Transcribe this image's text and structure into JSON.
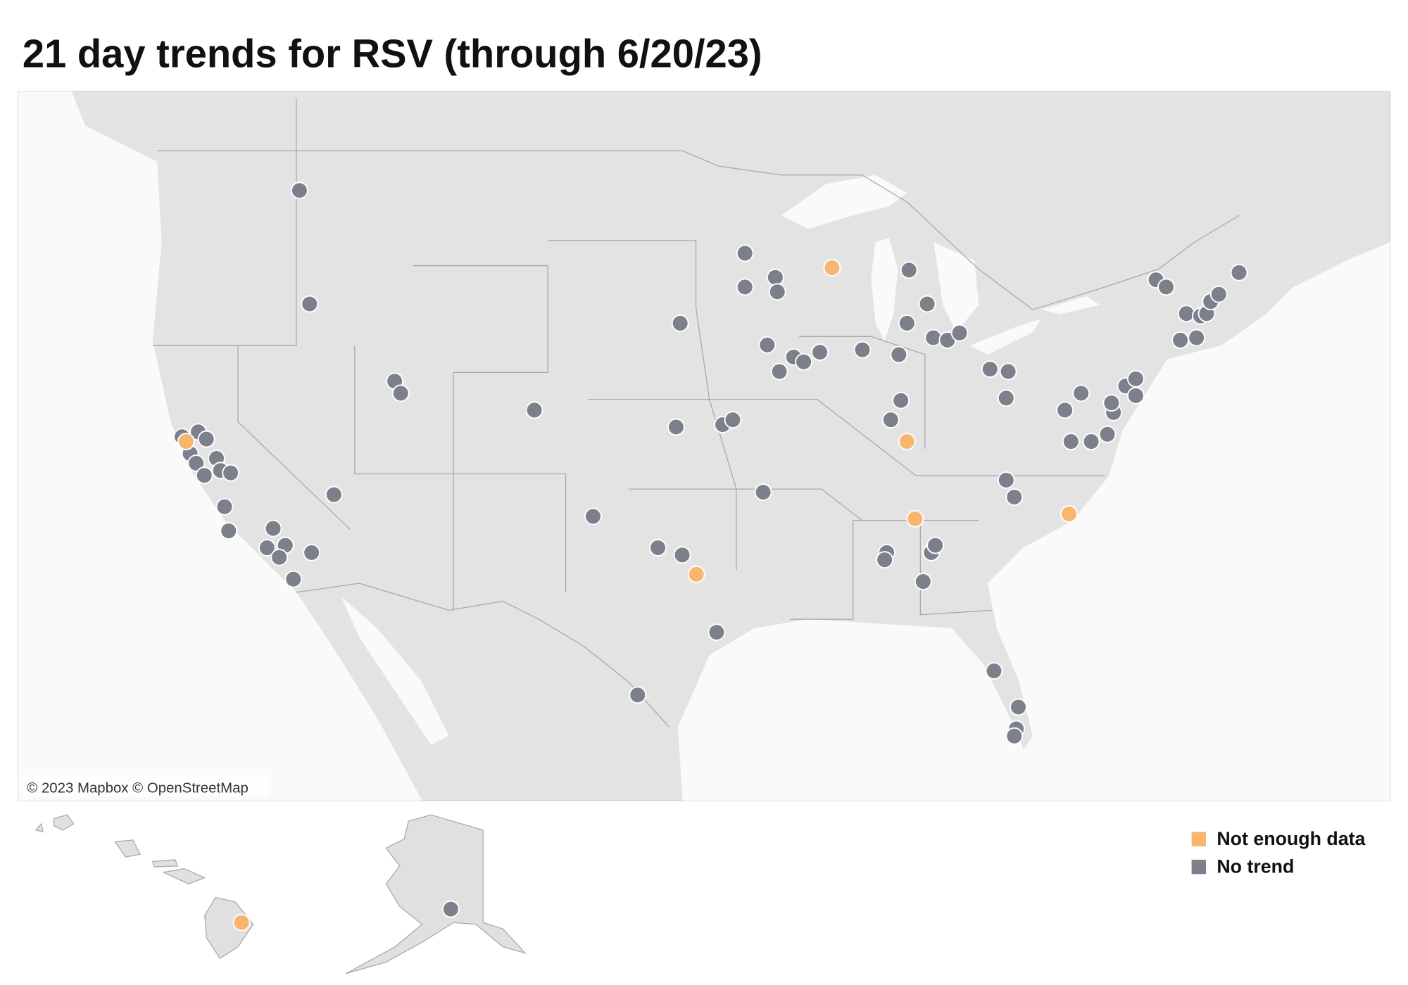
{
  "title": "21 day trends for RSV (through 6/20/23)",
  "attribution": "© 2023 Mapbox © OpenStreetMap",
  "series": [
    {
      "name": "No trend",
      "color": "#7b808b",
      "sites": [
        [
          -116.7,
          48.2
        ],
        [
          -116.2,
          43.5
        ],
        [
          -112.0,
          40.3
        ],
        [
          -111.7,
          39.8
        ],
        [
          -105.1,
          39.1
        ],
        [
          -115.0,
          35.6
        ],
        [
          -122.5,
          38.0
        ],
        [
          -121.7,
          38.2
        ],
        [
          -121.3,
          37.9
        ],
        [
          -122.1,
          37.3
        ],
        [
          -121.8,
          36.9
        ],
        [
          -120.8,
          37.1
        ],
        [
          -121.4,
          36.4
        ],
        [
          -120.6,
          36.6
        ],
        [
          -120.1,
          36.5
        ],
        [
          -120.4,
          35.1
        ],
        [
          -120.2,
          34.1
        ],
        [
          -118.0,
          34.2
        ],
        [
          -118.3,
          33.4
        ],
        [
          -117.4,
          33.5
        ],
        [
          -117.7,
          33.0
        ],
        [
          -116.1,
          33.2
        ],
        [
          -117.0,
          32.1
        ],
        [
          -102.2,
          34.7
        ],
        [
          -99.0,
          33.4
        ],
        [
          -97.8,
          33.1
        ],
        [
          -96.1,
          29.9
        ],
        [
          -100.0,
          27.3
        ],
        [
          -98.1,
          38.4
        ],
        [
          -95.8,
          38.5
        ],
        [
          -95.3,
          38.7
        ],
        [
          -93.8,
          35.7
        ],
        [
          -97.9,
          42.7
        ],
        [
          -94.7,
          45.6
        ],
        [
          -94.7,
          44.2
        ],
        [
          -93.2,
          44.6
        ],
        [
          -93.1,
          44.0
        ],
        [
          -93.6,
          41.8
        ],
        [
          -93.0,
          40.7
        ],
        [
          -92.3,
          41.3
        ],
        [
          -91.8,
          41.1
        ],
        [
          -91.0,
          41.5
        ],
        [
          -88.9,
          41.6
        ],
        [
          -87.1,
          41.4
        ],
        [
          -87.0,
          39.5
        ],
        [
          -87.5,
          38.7
        ],
        [
          -86.6,
          44.9
        ],
        [
          -85.7,
          43.5
        ],
        [
          -86.7,
          42.7
        ],
        [
          -85.4,
          42.1
        ],
        [
          -84.7,
          42.0
        ],
        [
          -84.1,
          42.3
        ],
        [
          -82.6,
          40.8
        ],
        [
          -81.7,
          40.7
        ],
        [
          -81.8,
          39.6
        ],
        [
          -81.8,
          36.2
        ],
        [
          -81.4,
          35.5
        ],
        [
          -87.7,
          33.2
        ],
        [
          -87.8,
          32.9
        ],
        [
          -85.5,
          33.2
        ],
        [
          -85.3,
          33.5
        ],
        [
          -85.9,
          32.0
        ],
        [
          -82.4,
          28.3
        ],
        [
          -81.2,
          26.8
        ],
        [
          -81.3,
          25.9
        ],
        [
          -81.4,
          25.6
        ],
        [
          -78.9,
          39.1
        ],
        [
          -78.1,
          39.8
        ],
        [
          -78.6,
          37.8
        ],
        [
          -77.6,
          37.8
        ],
        [
          -76.8,
          38.1
        ],
        [
          -76.5,
          39.0
        ],
        [
          -76.6,
          39.4
        ],
        [
          -75.9,
          40.1
        ],
        [
          -75.4,
          40.4
        ],
        [
          -75.4,
          39.7
        ],
        [
          -74.4,
          44.5
        ],
        [
          -73.9,
          44.2
        ],
        [
          -72.9,
          43.1
        ],
        [
          -72.2,
          43.0
        ],
        [
          -71.9,
          43.1
        ],
        [
          -71.7,
          43.6
        ],
        [
          -71.3,
          43.9
        ],
        [
          -70.3,
          44.8
        ],
        [
          -73.2,
          42.0
        ],
        [
          -72.4,
          42.1
        ],
        [
          -149.9,
          61.2
        ]
      ]
    },
    {
      "name": "Not enough data",
      "color": "#f8b56c",
      "sites": [
        [
          -122.3,
          37.8
        ],
        [
          -97.1,
          32.3
        ],
        [
          -90.4,
          45.0
        ],
        [
          -86.7,
          37.8
        ],
        [
          -78.7,
          34.8
        ],
        [
          -86.3,
          34.6
        ],
        [
          -155.1,
          19.7
        ]
      ]
    }
  ],
  "legend_order": [
    1,
    0
  ]
}
